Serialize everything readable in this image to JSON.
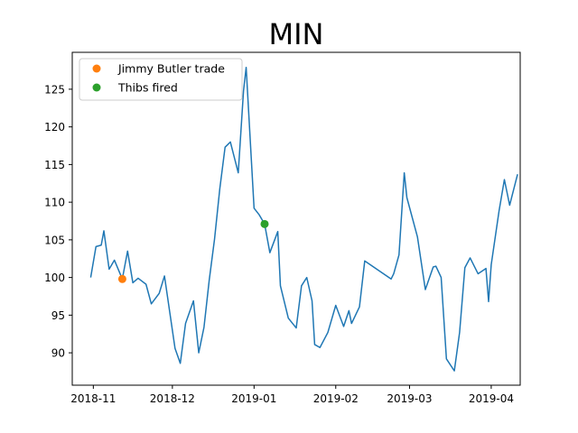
{
  "chart_data": {
    "type": "line",
    "title": "MIN",
    "xlabel": "",
    "ylabel": "",
    "x_ticks": [
      {
        "date": "2018-11-01",
        "label": "2018-11"
      },
      {
        "date": "2018-12-01",
        "label": "2018-12"
      },
      {
        "date": "2019-01-01",
        "label": "2019-01"
      },
      {
        "date": "2019-02-01",
        "label": "2019-02"
      },
      {
        "date": "2019-03-01",
        "label": "2019-03"
      },
      {
        "date": "2019-04-01",
        "label": "2019-04"
      }
    ],
    "y_ticks": [
      90,
      95,
      100,
      105,
      110,
      115,
      120,
      125
    ],
    "xlim": [
      "2018-10-24",
      "2019-04-12"
    ],
    "ylim": [
      85.7,
      129.9
    ],
    "grid": false,
    "legend_position": "top-left",
    "series": [
      {
        "color": "#1f77b4",
        "points": [
          [
            "2018-10-31",
            100.0
          ],
          [
            "2018-11-02",
            104.1
          ],
          [
            "2018-11-04",
            104.3
          ],
          [
            "2018-11-05",
            106.2
          ],
          [
            "2018-11-07",
            101.1
          ],
          [
            "2018-11-09",
            102.3
          ],
          [
            "2018-11-12",
            99.8
          ],
          [
            "2018-11-14",
            103.5
          ],
          [
            "2018-11-16",
            99.3
          ],
          [
            "2018-11-18",
            99.9
          ],
          [
            "2018-11-21",
            99.1
          ],
          [
            "2018-11-23",
            96.5
          ],
          [
            "2018-11-26",
            97.9
          ],
          [
            "2018-11-28",
            100.2
          ],
          [
            "2018-12-02",
            90.6
          ],
          [
            "2018-12-04",
            88.6
          ],
          [
            "2018-12-06",
            93.9
          ],
          [
            "2018-12-09",
            96.9
          ],
          [
            "2018-12-11",
            90.0
          ],
          [
            "2018-12-13",
            93.4
          ],
          [
            "2018-12-15",
            99.7
          ],
          [
            "2018-12-17",
            105.1
          ],
          [
            "2018-12-19",
            111.8
          ],
          [
            "2018-12-21",
            117.3
          ],
          [
            "2018-12-23",
            118.0
          ],
          [
            "2018-12-26",
            113.9
          ],
          [
            "2018-12-28",
            124.8
          ],
          [
            "2018-12-29",
            127.9
          ],
          [
            "2019-01-01",
            109.2
          ],
          [
            "2019-01-03",
            108.3
          ],
          [
            "2019-01-05",
            107.1
          ],
          [
            "2019-01-07",
            103.3
          ],
          [
            "2019-01-10",
            106.1
          ],
          [
            "2019-01-11",
            98.9
          ],
          [
            "2019-01-14",
            94.6
          ],
          [
            "2019-01-17",
            93.3
          ],
          [
            "2019-01-19",
            98.9
          ],
          [
            "2019-01-21",
            100.0
          ],
          [
            "2019-01-23",
            96.9
          ],
          [
            "2019-01-24",
            91.1
          ],
          [
            "2019-01-26",
            90.7
          ],
          [
            "2019-01-29",
            92.7
          ],
          [
            "2019-02-01",
            96.3
          ],
          [
            "2019-02-04",
            93.5
          ],
          [
            "2019-02-06",
            95.6
          ],
          [
            "2019-02-07",
            93.9
          ],
          [
            "2019-02-10",
            96.1
          ],
          [
            "2019-02-12",
            102.2
          ],
          [
            "2019-02-22",
            99.8
          ],
          [
            "2019-02-23",
            100.5
          ],
          [
            "2019-02-25",
            103.0
          ],
          [
            "2019-02-27",
            113.9
          ],
          [
            "2019-02-28",
            110.6
          ],
          [
            "2019-03-04",
            105.4
          ],
          [
            "2019-03-07",
            98.4
          ],
          [
            "2019-03-10",
            101.4
          ],
          [
            "2019-03-11",
            101.5
          ],
          [
            "2019-03-13",
            100.0
          ],
          [
            "2019-03-15",
            89.2
          ],
          [
            "2019-03-18",
            87.6
          ],
          [
            "2019-03-20",
            92.7
          ],
          [
            "2019-03-22",
            101.3
          ],
          [
            "2019-03-24",
            102.6
          ],
          [
            "2019-03-27",
            100.5
          ],
          [
            "2019-03-30",
            101.2
          ],
          [
            "2019-03-31",
            96.8
          ],
          [
            "2019-04-01",
            101.7
          ],
          [
            "2019-04-04",
            108.9
          ],
          [
            "2019-04-06",
            113.0
          ],
          [
            "2019-04-08",
            109.6
          ],
          [
            "2019-04-11",
            113.7
          ]
        ]
      }
    ],
    "markers": [
      {
        "name": "Jimmy Butler trade",
        "color": "#ff7f0e",
        "x": "2018-11-12",
        "y": 99.8
      },
      {
        "name": "Thibs fired",
        "color": "#2ca02c",
        "x": "2019-01-05",
        "y": 107.1
      }
    ]
  }
}
